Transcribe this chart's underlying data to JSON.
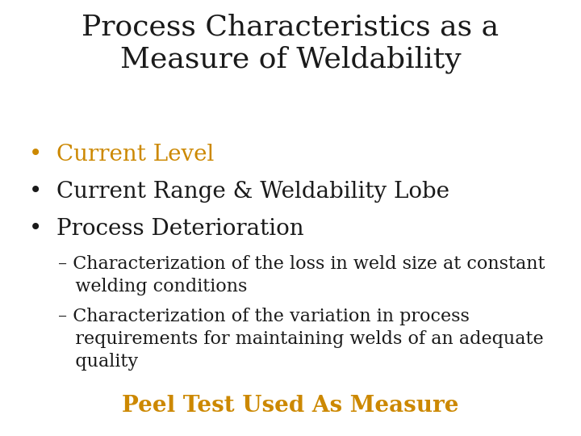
{
  "title_line1": "Process Characteristics as a",
  "title_line2": "Measure of Weldability",
  "title_color": "#1a1a1a",
  "title_fontsize": 26,
  "title_font": "serif",
  "bullet_color_1": "#CC8800",
  "bullet_color_23": "#1a1a1a",
  "bullet1": "Current Level",
  "bullet2": "Current Range & Weldability Lobe",
  "bullet3": "Process Deterioration",
  "sub1_line1": "– Characterization of the loss in weld size at constant",
  "sub1_line2": "   welding conditions",
  "sub2_line1": "– Characterization of the variation in process",
  "sub2_line2": "   requirements for maintaining welds of an adequate",
  "sub2_line3": "   quality",
  "footer": "Peel Test Used As Measure",
  "footer_color": "#CC8800",
  "footer_fontsize": 20,
  "bullet_fontsize": 20,
  "sub_fontsize": 16,
  "background_color": "#ffffff"
}
